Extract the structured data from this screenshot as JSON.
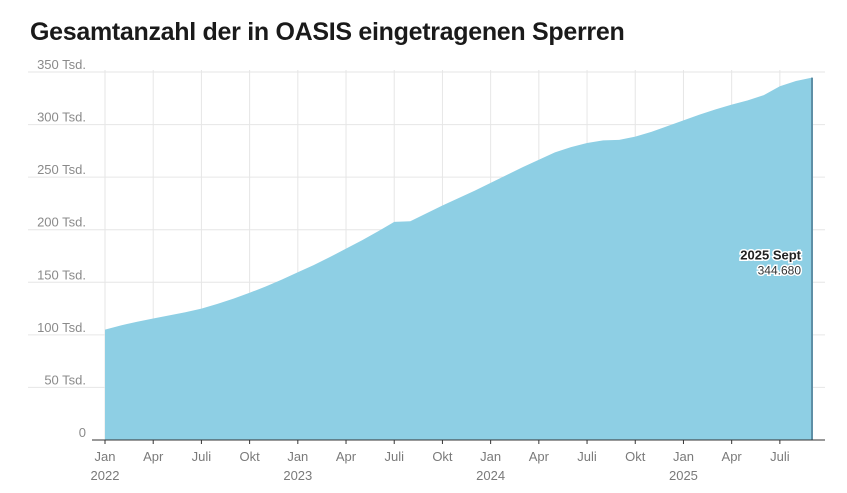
{
  "title": "Gesamtanzahl der in OASIS eingetragenen Sperren",
  "chart_data": {
    "type": "area",
    "title": "Gesamtanzahl der in OASIS eingetragenen Sperren",
    "xlabel": "",
    "ylabel": "",
    "ylim": [
      0,
      350000
    ],
    "y_ticks": [
      {
        "value": 0,
        "label": "0"
      },
      {
        "value": 50000,
        "label": "50 Tsd."
      },
      {
        "value": 100000,
        "label": "100 Tsd."
      },
      {
        "value": 150000,
        "label": "150 Tsd."
      },
      {
        "value": 200000,
        "label": "200 Tsd."
      },
      {
        "value": 250000,
        "label": "250 Tsd."
      },
      {
        "value": 300000,
        "label": "300 Tsd."
      },
      {
        "value": 350000,
        "label": "350 Tsd."
      }
    ],
    "x_ticks": [
      {
        "index": 0,
        "label": "Jan",
        "year": "2022"
      },
      {
        "index": 3,
        "label": "Apr"
      },
      {
        "index": 6,
        "label": "Juli"
      },
      {
        "index": 9,
        "label": "Okt"
      },
      {
        "index": 12,
        "label": "Jan",
        "year": "2023"
      },
      {
        "index": 15,
        "label": "Apr"
      },
      {
        "index": 18,
        "label": "Juli"
      },
      {
        "index": 21,
        "label": "Okt"
      },
      {
        "index": 24,
        "label": "Jan",
        "year": "2024"
      },
      {
        "index": 27,
        "label": "Apr"
      },
      {
        "index": 30,
        "label": "Juli"
      },
      {
        "index": 33,
        "label": "Okt"
      },
      {
        "index": 36,
        "label": "Jan",
        "year": "2025"
      },
      {
        "index": 39,
        "label": "Apr"
      },
      {
        "index": 42,
        "label": "Juli"
      }
    ],
    "x_count": 45,
    "values": [
      105000,
      109000,
      112500,
      115500,
      118500,
      121500,
      125000,
      129500,
      134500,
      140000,
      146000,
      152500,
      159500,
      166500,
      174000,
      182000,
      190000,
      198500,
      207500,
      208000,
      215500,
      223000,
      230000,
      237000,
      244500,
      252000,
      259500,
      266500,
      273500,
      278500,
      282500,
      285000,
      285500,
      288500,
      293000,
      298500,
      304000,
      309500,
      314500,
      319000,
      323000,
      328000,
      336500,
      341500,
      344680
    ],
    "color": "#8ecfe4",
    "end_line_color": "#5e8fa6",
    "annotation": {
      "label": "2025 Sept",
      "value": "344.680"
    }
  }
}
